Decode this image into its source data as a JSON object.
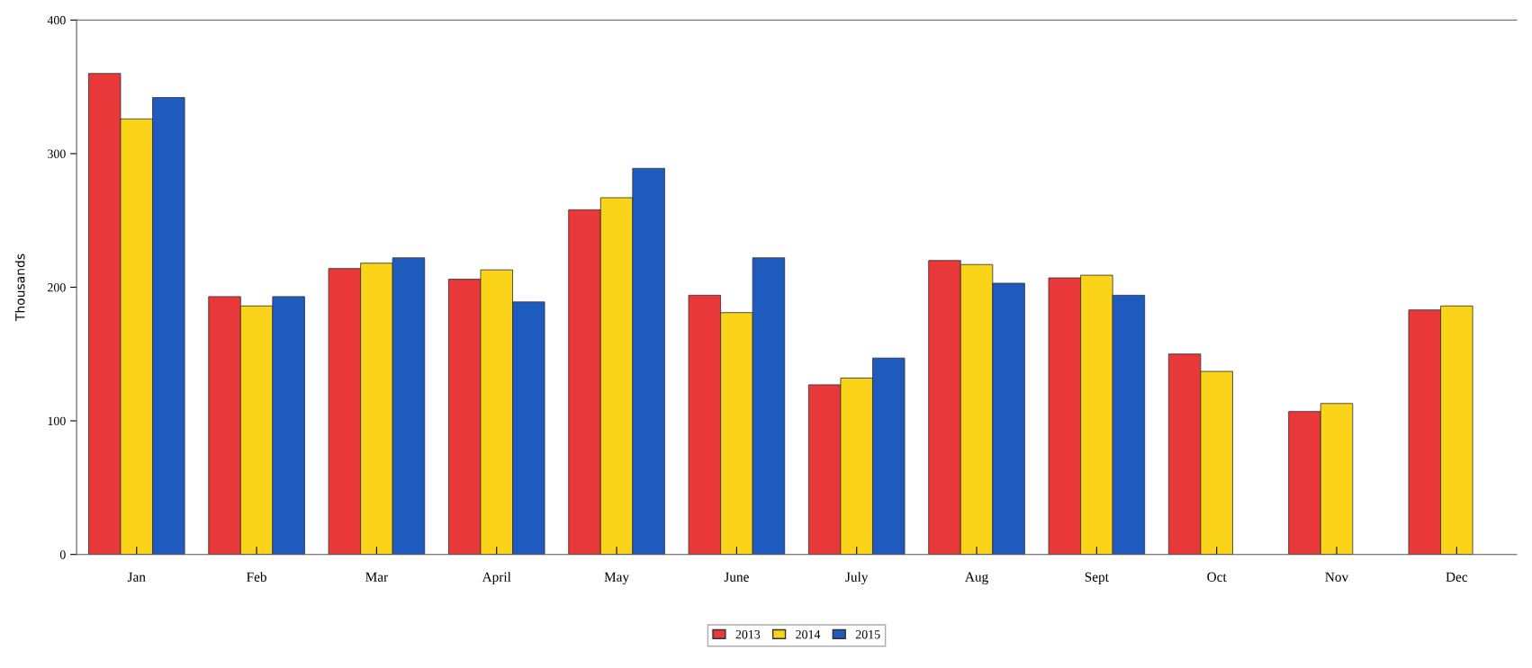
{
  "chart_data": {
    "type": "bar",
    "ylabel": "Thousands",
    "categories": [
      "Jan",
      "Feb",
      "Mar",
      "April",
      "May",
      "June",
      "July",
      "Aug",
      "Sept",
      "Oct",
      "Nov",
      "Dec"
    ],
    "series": [
      {
        "name": "2013",
        "color": "#e8383a",
        "values": [
          360,
          193,
          214,
          206,
          258,
          194,
          127,
          220,
          207,
          150,
          107,
          183
        ]
      },
      {
        "name": "2014",
        "color": "#fbd318",
        "values": [
          326,
          186,
          218,
          213,
          267,
          181,
          132,
          217,
          209,
          137,
          113,
          186
        ]
      },
      {
        "name": "2015",
        "color": "#1f5bbf",
        "values": [
          342,
          193,
          222,
          189,
          289,
          222,
          147,
          203,
          194,
          null,
          null,
          null
        ]
      }
    ],
    "ylim": [
      0,
      400
    ],
    "yticks": [
      0,
      100,
      200,
      300,
      400
    ],
    "grid": false,
    "legend": "bottom"
  }
}
